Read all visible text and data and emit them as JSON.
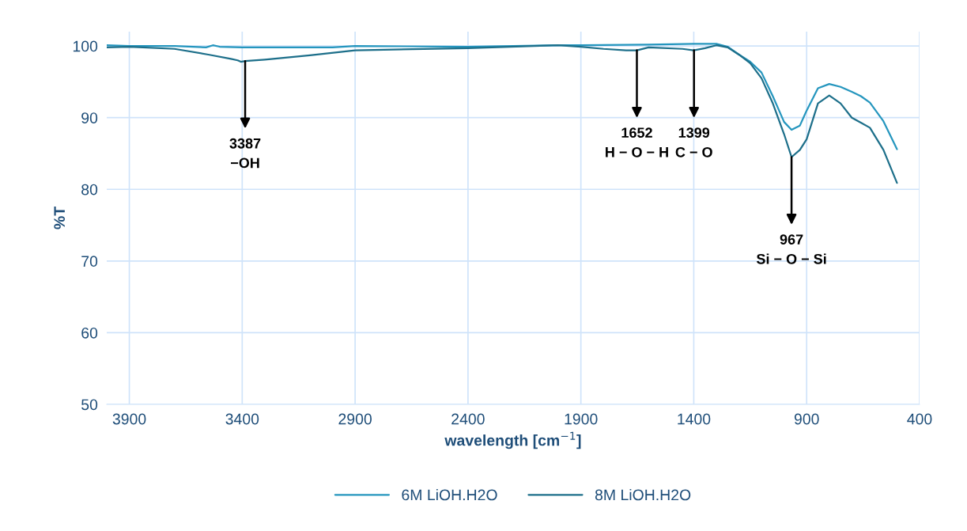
{
  "chart_data": {
    "type": "line",
    "xlabel": "wavelength [cm$^{−1}$]",
    "ylabel": "%T",
    "xlim": [
      4000,
      400
    ],
    "xticks": [
      3900,
      3400,
      2900,
      2400,
      1900,
      1400,
      900,
      400
    ],
    "ylim": [
      50,
      102
    ],
    "yticks": [
      50,
      60,
      70,
      80,
      90,
      100
    ],
    "grid": true,
    "legend": "bottom",
    "marker": "none",
    "line_style": "solid",
    "series": [
      {
        "name": "6M LiOH.H2O",
        "color": "#2596be",
        "x": [
          4000,
          3900,
          3700,
          3560,
          3530,
          3500,
          3400,
          3000,
          2900,
          2400,
          2000,
          1900,
          1600,
          1400,
          1300,
          1250,
          1200,
          1150,
          1100,
          1050,
          1000,
          967,
          930,
          900,
          850,
          800,
          750,
          700,
          660,
          620,
          560,
          500
        ],
        "values": [
          100.1,
          100.0,
          100.0,
          99.8,
          100.1,
          99.9,
          99.8,
          99.8,
          100.0,
          99.9,
          100.1,
          100.1,
          100.2,
          100.3,
          100.3,
          99.9,
          98.8,
          97.8,
          96.3,
          93.0,
          89.4,
          88.3,
          88.9,
          91.0,
          94.1,
          94.7,
          94.3,
          93.6,
          93.0,
          92.1,
          89.5,
          85.6
        ]
      },
      {
        "name": "8M LiOH.H2O",
        "color": "#1d6f8a",
        "x": [
          4000,
          3900,
          3700,
          3550,
          3450,
          3420,
          3406,
          3387,
          3300,
          3100,
          2900,
          2400,
          2000,
          1900,
          1800,
          1700,
          1652,
          1600,
          1450,
          1400,
          1350,
          1300,
          1250,
          1200,
          1150,
          1100,
          1050,
          1000,
          967,
          930,
          900,
          850,
          800,
          750,
          700,
          660,
          620,
          560,
          500
        ],
        "values": [
          99.8,
          99.9,
          99.6,
          98.8,
          98.2,
          98.0,
          97.8,
          97.9,
          98.1,
          98.7,
          99.4,
          99.7,
          100.1,
          99.9,
          99.6,
          99.4,
          99.4,
          99.8,
          99.6,
          99.4,
          99.7,
          100.1,
          99.8,
          98.8,
          97.6,
          95.5,
          92.0,
          87.7,
          84.5,
          85.5,
          87.0,
          92.0,
          93.1,
          92.0,
          90.0,
          89.3,
          88.6,
          85.5,
          80.9
        ]
      }
    ],
    "annotations": [
      {
        "text": "3387\n−OH",
        "x": 3387,
        "y": 97.9
      },
      {
        "text": "1652\nH − O − H",
        "x": 1652,
        "y": 99.4
      },
      {
        "text": "1399\nC − O",
        "x": 1399,
        "y": 99.4
      },
      {
        "text": "967\nSi − O − Si",
        "x": 967,
        "y": 84.5
      }
    ]
  }
}
